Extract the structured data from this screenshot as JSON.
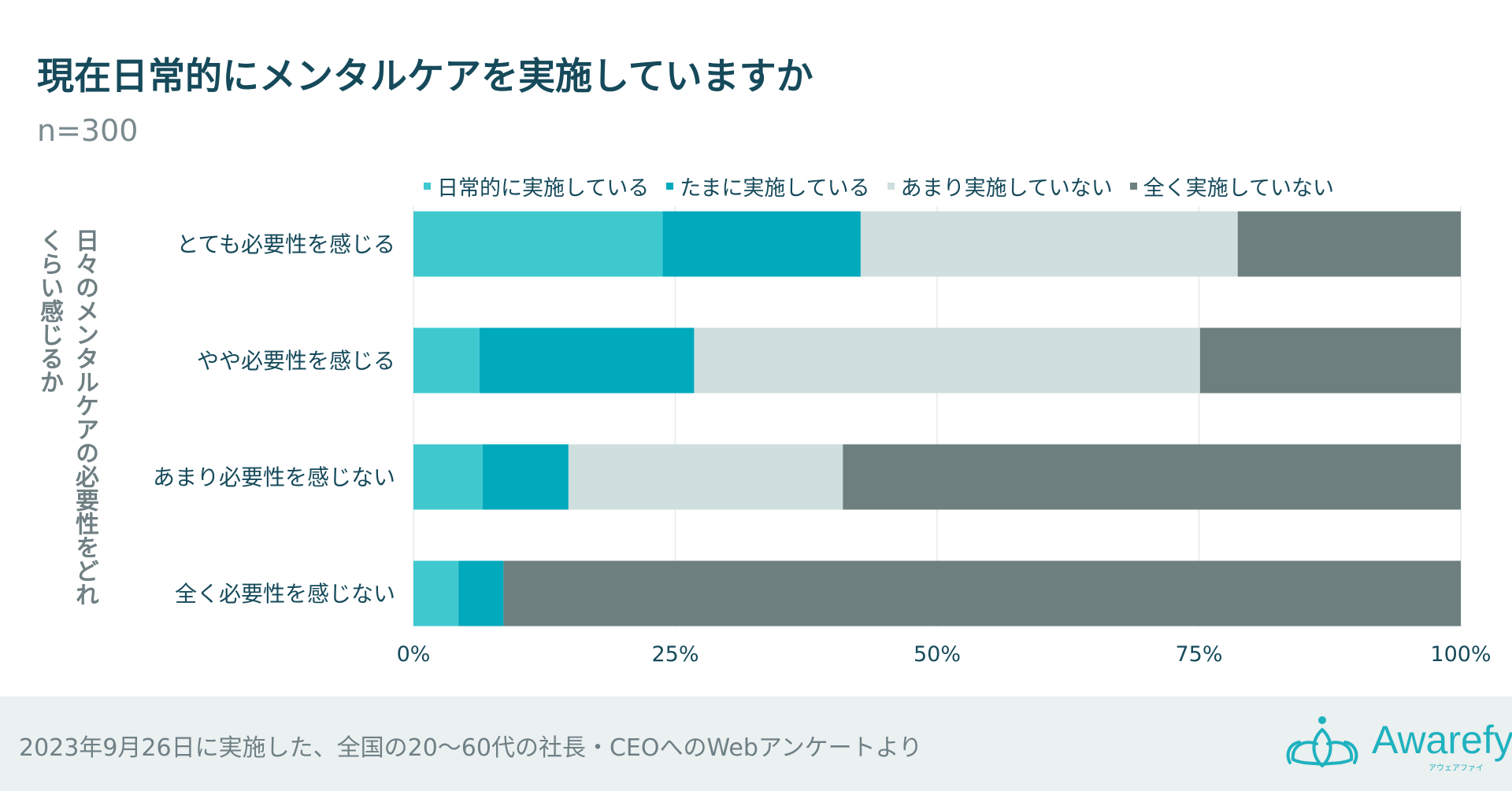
{
  "header": {
    "title": "現在日常的にメンタルケアを実施していますか",
    "subtitle": "n=300"
  },
  "y_axis_title": "日々のメンタルケアの必要性をどれくらい感じるか",
  "colors": {
    "title": "#164a5b",
    "series": [
      "#3fc9cf",
      "#00a9bb",
      "#cfdedf",
      "#6e7f80"
    ],
    "grid": "#e6eaea",
    "label": "#164a5b",
    "footer_bg": "#ebf0f0",
    "logo": "#1fb2bf"
  },
  "chart_data": {
    "type": "bar",
    "orientation": "horizontal",
    "stacked": true,
    "categories": [
      "とても必要性を感じる",
      "やや必要性を感じる",
      "あまり必要性を感じない",
      "全く必要性を感じない"
    ],
    "series": [
      {
        "name": "日常的に実施している",
        "values": [
          23.8,
          6.3,
          6.6,
          4.3
        ]
      },
      {
        "name": "たまに実施している",
        "values": [
          18.9,
          20.5,
          8.2,
          4.3
        ]
      },
      {
        "name": "あまり実施していない",
        "values": [
          36.0,
          48.3,
          26.2,
          0
        ]
      },
      {
        "name": "全く実施していない",
        "values": [
          21.3,
          24.9,
          59.0,
          91.4
        ]
      }
    ],
    "xlim": [
      0,
      100
    ],
    "xticks": [
      "0%",
      "25%",
      "50%",
      "75%",
      "100%"
    ],
    "xtick_values": [
      0,
      25,
      50,
      75,
      100
    ],
    "grid": true,
    "legend_position": "top"
  },
  "footer": {
    "note": "2023年9月26日に実施した、全国の20〜60代の社長・CEOへのWebアンケートより",
    "logo_text": "Awarefy",
    "logo_sub": "アウェアファイ"
  }
}
